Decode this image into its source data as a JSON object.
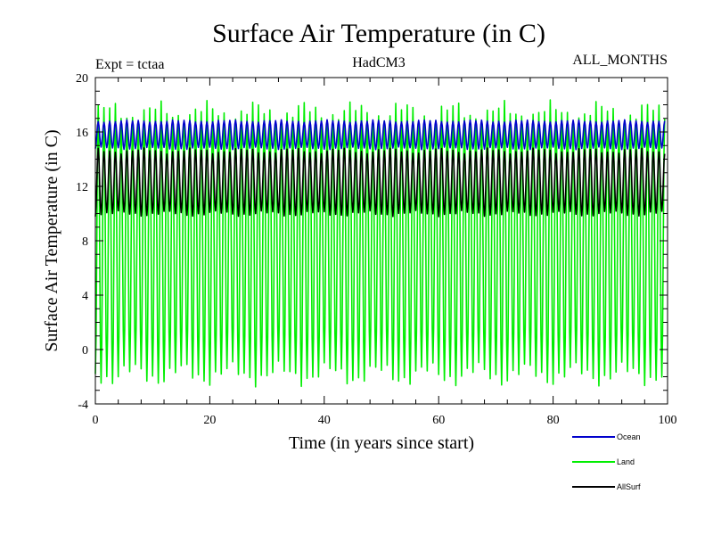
{
  "chart_data": {
    "type": "line",
    "title": "Surface Air Temperature (in C)",
    "subtitle_left": "Expt = tctaa",
    "subtitle_center": "HadCM3",
    "subtitle_right": "ALL_MONTHS",
    "xlabel": "Time (in years since start)",
    "ylabel": "Surface Air Temperature (in C)",
    "xlim": [
      0,
      100
    ],
    "ylim": [
      -4,
      20
    ],
    "x_ticks": [
      0,
      20,
      40,
      60,
      80,
      100
    ],
    "y_ticks": [
      -4,
      0,
      4,
      8,
      12,
      16,
      20
    ],
    "x_minor_step": 4,
    "y_minor_step": 1,
    "grid": false,
    "legend_position": "bottom-right",
    "x_start": 0,
    "x_end": 99.5,
    "cycles_per_year": 1,
    "series": [
      {
        "name": "Land",
        "color": "#00ee00",
        "mean": 7.8,
        "amplitude": 9.6,
        "min_approx": -2.0,
        "max_approx": 18.2
      },
      {
        "name": "AllSurf",
        "color": "#000000",
        "mean": 12.3,
        "amplitude": 2.3,
        "min_approx": 9.9,
        "max_approx": 14.7
      },
      {
        "name": "Ocean",
        "color": "#0000cc",
        "mean": 15.8,
        "amplitude": 1.0,
        "min_approx": 14.6,
        "max_approx": 17.0
      }
    ],
    "legend": [
      {
        "name": "Ocean",
        "color": "#0000cc"
      },
      {
        "name": "Land",
        "color": "#00ee00"
      },
      {
        "name": "AllSurf",
        "color": "#000000"
      }
    ]
  }
}
